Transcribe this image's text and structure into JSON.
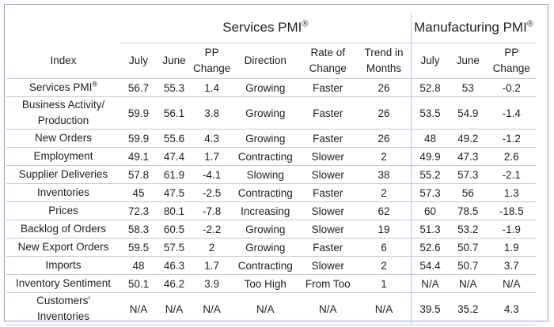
{
  "group_headers": {
    "services": "Services PMI",
    "manufacturing": "Manufacturing PMI",
    "registered_mark": "®"
  },
  "columns": {
    "index": "Index",
    "svc_july": "July",
    "svc_june": "June",
    "svc_pp_line1": "PP",
    "svc_pp_line2": "Change",
    "direction": "Direction",
    "rate_line1": "Rate of",
    "rate_line2": "Change",
    "trend_line1": "Trend in",
    "trend_line2": "Months",
    "mfg_july": "July",
    "mfg_june": "June",
    "mfg_pp_line1": "PP",
    "mfg_pp_line2": "Change"
  },
  "rows": [
    {
      "index": "Services PMI",
      "index_mark": "®",
      "svc_july": "56.7",
      "svc_june": "55.3",
      "svc_pp": "1.4",
      "direction": "Growing",
      "rate": "Faster",
      "trend": "26",
      "mfg_july": "52.8",
      "mfg_june": "53",
      "mfg_pp": "-0.2"
    },
    {
      "index_line1": "Business Activity/",
      "index_line2": "Production",
      "svc_july": "59.9",
      "svc_june": "56.1",
      "svc_pp": "3.8",
      "direction": "Growing",
      "rate": "Faster",
      "trend": "26",
      "mfg_july": "53.5",
      "mfg_june": "54.9",
      "mfg_pp": "-1.4"
    },
    {
      "index": "New Orders",
      "svc_july": "59.9",
      "svc_june": "55.6",
      "svc_pp": "4.3",
      "direction": "Growing",
      "rate": "Faster",
      "trend": "26",
      "mfg_july": "48",
      "mfg_june": "49.2",
      "mfg_pp": "-1.2"
    },
    {
      "index": "Employment",
      "svc_july": "49.1",
      "svc_june": "47.4",
      "svc_pp": "1.7",
      "direction": "Contracting",
      "rate": "Slower",
      "trend": "2",
      "mfg_july": "49.9",
      "mfg_june": "47.3",
      "mfg_pp": "2.6"
    },
    {
      "index": "Supplier Deliveries",
      "svc_july": "57.8",
      "svc_june": "61.9",
      "svc_pp": "-4.1",
      "direction": "Slowing",
      "rate": "Slower",
      "trend": "38",
      "mfg_july": "55.2",
      "mfg_june": "57.3",
      "mfg_pp": "-2.1"
    },
    {
      "index": "Inventories",
      "svc_july": "45",
      "svc_june": "47.5",
      "svc_pp": "-2.5",
      "direction": "Contracting",
      "rate": "Faster",
      "trend": "2",
      "mfg_july": "57.3",
      "mfg_june": "56",
      "mfg_pp": "1.3"
    },
    {
      "index": "Prices",
      "svc_july": "72.3",
      "svc_june": "80.1",
      "svc_pp": "-7.8",
      "direction": "Increasing",
      "rate": "Slower",
      "trend": "62",
      "mfg_july": "60",
      "mfg_june": "78.5",
      "mfg_pp": "-18.5"
    },
    {
      "index": "Backlog of Orders",
      "svc_july": "58.3",
      "svc_june": "60.5",
      "svc_pp": "-2.2",
      "direction": "Growing",
      "rate": "Slower",
      "trend": "19",
      "mfg_july": "51.3",
      "mfg_june": "53.2",
      "mfg_pp": "-1.9"
    },
    {
      "index": "New Export Orders",
      "svc_july": "59.5",
      "svc_june": "57.5",
      "svc_pp": "2",
      "direction": "Growing",
      "rate": "Faster",
      "trend": "6",
      "mfg_july": "52.6",
      "mfg_june": "50.7",
      "mfg_pp": "1.9"
    },
    {
      "index": "Imports",
      "svc_july": "48",
      "svc_june": "46.3",
      "svc_pp": "1.7",
      "direction": "Contracting",
      "rate": "Slower",
      "trend": "2",
      "mfg_july": "54.4",
      "mfg_june": "50.7",
      "mfg_pp": "3.7"
    },
    {
      "index": "Inventory Sentiment",
      "svc_july": "50.1",
      "svc_june": "46.2",
      "svc_pp": "3.9",
      "direction": "Too High",
      "rate": "From Too",
      "trend": "1",
      "mfg_july": "N/A",
      "mfg_june": "N/A",
      "mfg_pp": "N/A"
    },
    {
      "index_line1": "Customers'",
      "index_line2": "Inventories",
      "svc_july": "N/A",
      "svc_june": "N/A",
      "svc_pp": "N/A",
      "direction": "N/A",
      "rate": "N/A",
      "trend": "N/A",
      "mfg_july": "39.5",
      "mfg_june": "35.2",
      "mfg_pp": "4.3"
    }
  ]
}
